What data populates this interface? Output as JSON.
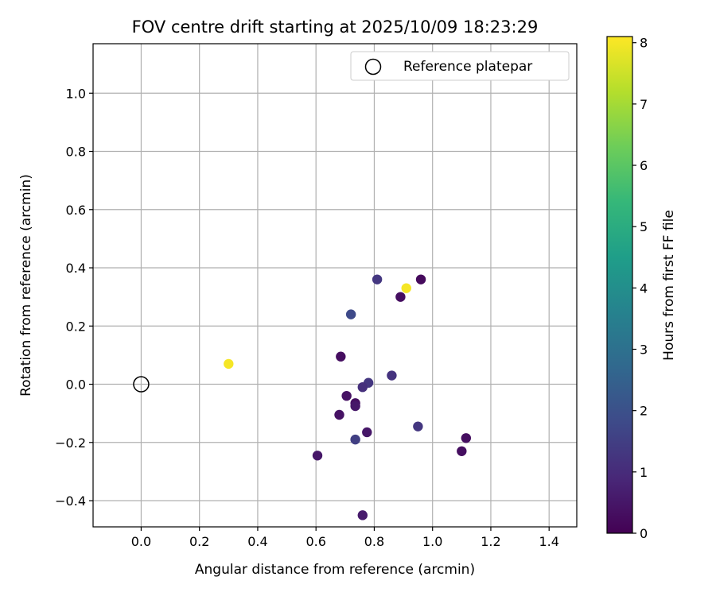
{
  "chart_data": {
    "type": "scatter",
    "title": "FOV centre drift starting at 2025/10/09 18:23:29",
    "xlabel": "Angular distance from reference (arcmin)",
    "ylabel": "Rotation from reference (arcmin)",
    "xlim": [
      -0.165,
      1.495
    ],
    "ylim": [
      -0.49,
      1.17
    ],
    "x_ticks": [
      0.0,
      0.2,
      0.4,
      0.6,
      0.8,
      1.0,
      1.2,
      1.4
    ],
    "x_tick_labels": [
      "0.0",
      "0.2",
      "0.4",
      "0.6",
      "0.8",
      "1.0",
      "1.2",
      "1.4"
    ],
    "y_ticks": [
      -0.4,
      -0.2,
      0.0,
      0.2,
      0.4,
      0.6,
      0.8,
      1.0
    ],
    "y_tick_labels": [
      "−0.4",
      "−0.2",
      "0.0",
      "0.2",
      "0.4",
      "0.6",
      "0.8",
      "1.0"
    ],
    "grid": true,
    "legend": {
      "position": "top-right",
      "entries": [
        "Reference platepar"
      ]
    },
    "reference_point": {
      "name": "Reference platepar",
      "x": 0.0,
      "y": 0.0
    },
    "colorbar": {
      "label": "Hours from first FF file",
      "range": [
        0,
        8.1
      ],
      "ticks": [
        0,
        1,
        2,
        3,
        4,
        5,
        6,
        7,
        8
      ],
      "tick_labels": [
        "0",
        "1",
        "2",
        "3",
        "4",
        "5",
        "6",
        "7",
        "8"
      ],
      "colormap": "viridis"
    },
    "points": [
      {
        "x": 0.3,
        "y": 0.07,
        "hours": 8.0
      },
      {
        "x": 0.91,
        "y": 0.33,
        "hours": 8.0
      },
      {
        "x": 0.96,
        "y": 0.36,
        "hours": 0.2
      },
      {
        "x": 0.89,
        "y": 0.3,
        "hours": 0.3
      },
      {
        "x": 0.81,
        "y": 0.36,
        "hours": 1.3
      },
      {
        "x": 0.72,
        "y": 0.24,
        "hours": 1.8
      },
      {
        "x": 0.685,
        "y": 0.095,
        "hours": 0.3
      },
      {
        "x": 0.86,
        "y": 0.03,
        "hours": 1.2
      },
      {
        "x": 0.78,
        "y": 0.005,
        "hours": 1.3
      },
      {
        "x": 0.76,
        "y": -0.01,
        "hours": 1.1
      },
      {
        "x": 0.705,
        "y": -0.04,
        "hours": 0.4
      },
      {
        "x": 0.735,
        "y": -0.065,
        "hours": 0.3
      },
      {
        "x": 0.735,
        "y": -0.075,
        "hours": 0.5
      },
      {
        "x": 0.68,
        "y": -0.105,
        "hours": 0.4
      },
      {
        "x": 0.775,
        "y": -0.165,
        "hours": 0.5
      },
      {
        "x": 0.735,
        "y": -0.19,
        "hours": 1.5
      },
      {
        "x": 0.95,
        "y": -0.145,
        "hours": 1.3
      },
      {
        "x": 1.115,
        "y": -0.185,
        "hours": 0.3
      },
      {
        "x": 1.1,
        "y": -0.23,
        "hours": 0.3
      },
      {
        "x": 0.605,
        "y": -0.245,
        "hours": 0.5
      },
      {
        "x": 0.76,
        "y": -0.45,
        "hours": 0.6
      }
    ]
  }
}
